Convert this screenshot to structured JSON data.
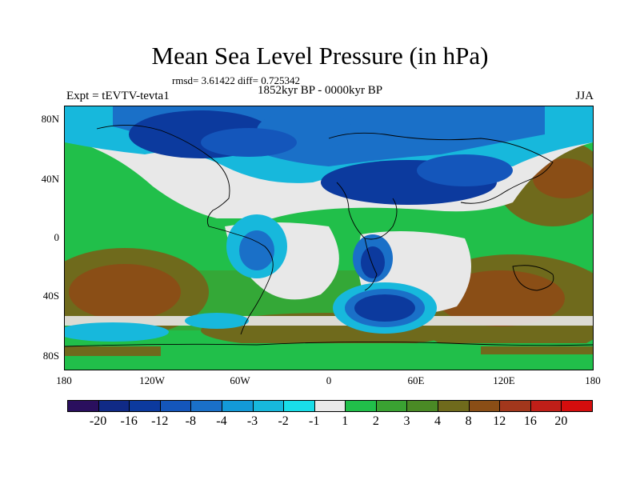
{
  "title": "Mean Sea Level Pressure (in hPa)",
  "stats": "rmsd= 3.61422  diff= 0.725342",
  "period": "1852kyr BP - 0000kyr BP",
  "experiment": "Expt = tEVTV-tevta1",
  "season": "JJA",
  "lat_labels": [
    "80N",
    "40N",
    "0",
    "40S",
    "80S"
  ],
  "lon_labels": [
    "180",
    "120W",
    "60W",
    "0",
    "60E",
    "120E",
    "180"
  ],
  "colorbar": {
    "labels": [
      "-20",
      "-16",
      "-12",
      "-8",
      "-4",
      "-3",
      "-2",
      "-1",
      "1",
      "2",
      "3",
      "4",
      "8",
      "12",
      "16",
      "20"
    ],
    "colors": [
      "#2a0f5e",
      "#102a86",
      "#0c3a9e",
      "#1456bb",
      "#1a70c8",
      "#139ad8",
      "#17b8dc",
      "#19dde8",
      "#e8e8e8",
      "#21bf4a",
      "#3aa232",
      "#4a8a25",
      "#6f6a1c",
      "#8a4e16",
      "#a2371c",
      "#c01f18",
      "#d50d0d"
    ]
  },
  "palette": {
    "deep_blue": "#0c3a9e",
    "mid_blue": "#1a70c8",
    "light_blue": "#17b8dc",
    "neutral": "#e8e8e8",
    "green": "#21bf4a",
    "olive": "#6f6a1c",
    "brown": "#8a4e16"
  }
}
